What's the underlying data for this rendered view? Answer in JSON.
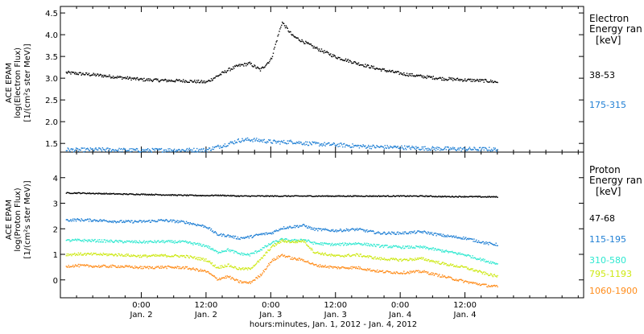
{
  "chart_data": [
    {
      "type": "scatter",
      "panel": "electron",
      "ylabel_lines": [
        "ACE EPAM",
        "log(Electron Flux)",
        "[1/(cm²s ster MeV)]"
      ],
      "ylim": [
        1.3,
        4.65
      ],
      "yticks": [
        1.5,
        2.0,
        2.5,
        3.0,
        3.5,
        4.0,
        4.5
      ],
      "ytick_labels": [
        "1.5",
        "2.0",
        "2.5",
        "3.0",
        "3.5",
        "4.0",
        "4.5"
      ],
      "legend_title_lines": [
        "Electron",
        "Energy ran",
        "[keV]"
      ],
      "x_hours": [
        -15,
        -12,
        -8,
        -4,
        0,
        4,
        8,
        12,
        16,
        18,
        20,
        22,
        24,
        26,
        28,
        30,
        32,
        36,
        40,
        44,
        48,
        52,
        56,
        60,
        64,
        66
      ],
      "series": [
        {
          "name": "38-53",
          "color": "#000000",
          "noise": 0.035,
          "values": [
            3.15,
            3.12,
            3.08,
            3.03,
            2.98,
            2.96,
            2.95,
            2.92,
            3.2,
            3.3,
            3.35,
            3.2,
            3.45,
            4.3,
            3.98,
            3.85,
            3.72,
            3.5,
            3.35,
            3.22,
            3.12,
            3.05,
            3.0,
            2.97,
            2.95,
            2.92
          ]
        },
        {
          "name": "175-315",
          "color": "#1f7fd4",
          "noise": 0.045,
          "values": [
            1.37,
            1.36,
            1.37,
            1.36,
            1.35,
            1.36,
            1.36,
            1.36,
            1.5,
            1.58,
            1.6,
            1.58,
            1.55,
            1.54,
            1.55,
            1.52,
            1.5,
            1.48,
            1.45,
            1.43,
            1.42,
            1.4,
            1.39,
            1.38,
            1.38,
            1.37
          ]
        }
      ]
    },
    {
      "type": "scatter",
      "panel": "proton",
      "ylabel_lines": [
        "ACE EPAM",
        "log(Proton Flux)",
        "[1/(cm²s ster MeV)]"
      ],
      "ylim": [
        -0.7,
        5.0
      ],
      "yticks": [
        0,
        1,
        2,
        3,
        4
      ],
      "ytick_labels": [
        "0",
        "1",
        "2",
        "3",
        "4"
      ],
      "legend_title_lines": [
        "Proton",
        "Energy ran",
        "[keV]"
      ],
      "x_hours": [
        -15,
        -12,
        -8,
        -4,
        0,
        4,
        8,
        12,
        14,
        16,
        18,
        20,
        22,
        24,
        26,
        28,
        30,
        32,
        36,
        40,
        44,
        48,
        52,
        56,
        60,
        64,
        66
      ],
      "series": [
        {
          "name": "47-68",
          "color": "#000000",
          "noise": 0.02,
          "values": [
            3.42,
            3.42,
            3.4,
            3.38,
            3.37,
            3.35,
            3.33,
            3.32,
            3.33,
            3.32,
            3.3,
            3.3,
            3.3,
            3.3,
            3.3,
            3.3,
            3.3,
            3.3,
            3.3,
            3.3,
            3.3,
            3.3,
            3.3,
            3.28,
            3.28,
            3.27,
            3.27
          ]
        },
        {
          "name": "115-195",
          "color": "#1f7fd4",
          "noise": 0.05,
          "values": [
            2.35,
            2.37,
            2.35,
            2.3,
            2.3,
            2.35,
            2.28,
            2.1,
            1.8,
            1.75,
            1.65,
            1.7,
            1.8,
            1.85,
            2.05,
            2.1,
            2.15,
            2.0,
            1.95,
            2.0,
            1.85,
            1.85,
            1.9,
            1.75,
            1.65,
            1.45,
            1.4
          ]
        },
        {
          "name": "310-580",
          "color": "#2ee8d0",
          "noise": 0.05,
          "values": [
            1.55,
            1.57,
            1.55,
            1.52,
            1.5,
            1.52,
            1.5,
            1.35,
            1.1,
            1.2,
            1.05,
            1.0,
            1.2,
            1.45,
            1.6,
            1.55,
            1.6,
            1.45,
            1.4,
            1.45,
            1.35,
            1.3,
            1.3,
            1.15,
            1.0,
            0.75,
            0.65
          ]
        },
        {
          "name": "795-1193",
          "color": "#cde812",
          "noise": 0.05,
          "values": [
            1.0,
            1.03,
            1.02,
            1.0,
            0.95,
            0.97,
            0.95,
            0.8,
            0.5,
            0.6,
            0.45,
            0.45,
            0.8,
            1.3,
            1.55,
            1.5,
            1.55,
            1.1,
            0.95,
            1.0,
            0.85,
            0.8,
            0.85,
            0.65,
            0.5,
            0.25,
            0.15
          ]
        },
        {
          "name": "1060-1900",
          "color": "#ff8c1a",
          "noise": 0.05,
          "values": [
            0.55,
            0.58,
            0.55,
            0.55,
            0.5,
            0.52,
            0.5,
            0.35,
            0.05,
            0.15,
            -0.05,
            -0.1,
            0.2,
            0.75,
            1.0,
            0.85,
            0.8,
            0.6,
            0.5,
            0.5,
            0.35,
            0.3,
            0.35,
            0.15,
            -0.05,
            -0.2,
            -0.25
          ]
        }
      ]
    }
  ],
  "x_axis": {
    "xlim_hours": [
      -15,
      82
    ],
    "ticks_hours": [
      0,
      12,
      24,
      36,
      48,
      60
    ],
    "time_labels": [
      "0:00",
      "12:00",
      "0:00",
      "12:00",
      "0:00",
      "12:00"
    ],
    "date_labels": [
      "Jan. 2",
      "Jan. 2",
      "Jan. 3",
      "Jan. 3",
      "Jan. 4",
      "Jan. 4"
    ],
    "minor_step_hours": 3,
    "title": "hours:minutes, Jan.  1, 2012 - Jan.  4, 2012"
  }
}
